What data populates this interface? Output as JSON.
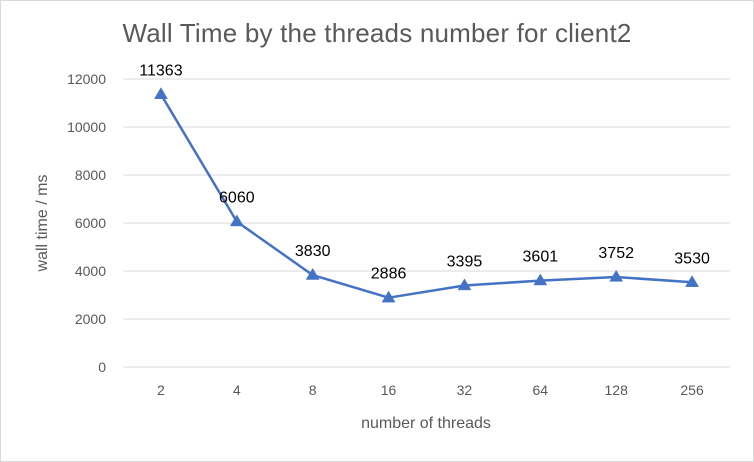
{
  "chart_data": {
    "type": "line",
    "title": "Wall Time by the threads number for client2",
    "xlabel": "number of threads",
    "ylabel": "wall time / ms",
    "categories": [
      "2",
      "4",
      "8",
      "16",
      "32",
      "64",
      "128",
      "256"
    ],
    "series": [
      {
        "values": [
          11363,
          6060,
          3830,
          2886,
          3395,
          3601,
          3752,
          3530
        ],
        "color": "#4472c4",
        "marker": "triangle"
      }
    ],
    "ylim": [
      0,
      12000
    ],
    "yticks": [
      0,
      2000,
      4000,
      6000,
      8000,
      10000,
      12000
    ],
    "grid": true,
    "legend": "none",
    "data_labels": true
  }
}
